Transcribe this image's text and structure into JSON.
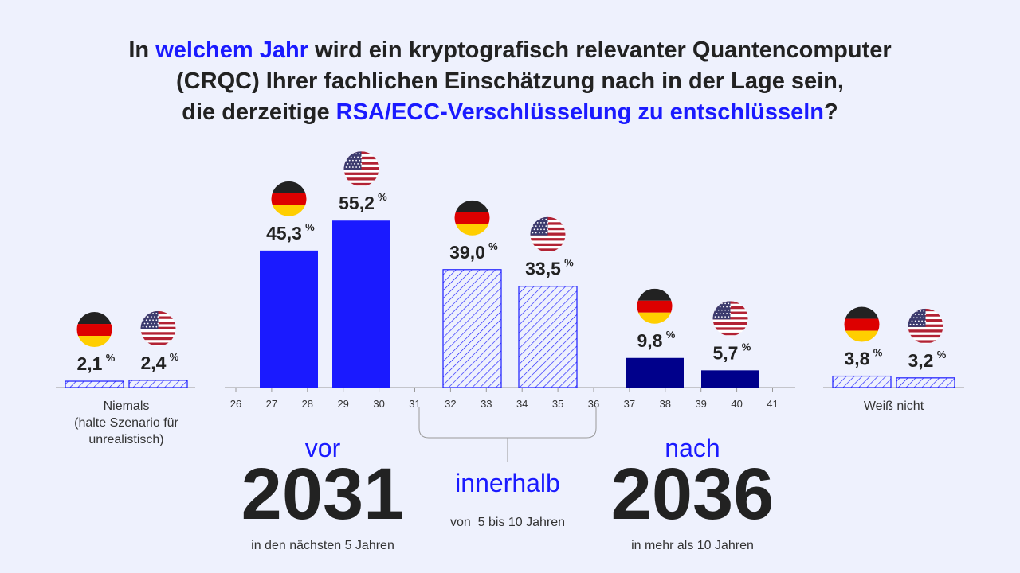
{
  "title": {
    "line1_a": "In ",
    "line1_hl": "welchem Jahr",
    "line1_b": " wird ein kryptografisch relevanter Quantencomputer",
    "line2": "(CRQC) Ihrer fachlichen Einschätzung nach in der Lage sein,",
    "line3_a": "die derzeitige ",
    "line3_hl": "RSA/ECC-Verschlüsselung zu entschlüsseln",
    "line3_b": "?"
  },
  "colors": {
    "background": "#eef1fd",
    "accent": "#1a1aff",
    "navy": "#00008b",
    "text": "#222222"
  },
  "chart_data": {
    "type": "bar",
    "unit": "%",
    "x_ticks": [
      "26",
      "27",
      "28",
      "29",
      "30",
      "31",
      "32",
      "33",
      "34",
      "35",
      "36",
      "37",
      "38",
      "39",
      "40",
      "41"
    ],
    "grid": false,
    "groups": [
      {
        "category": "Niemals (halte Szenario für unrealistisch)",
        "label_lines": [
          "Niemals",
          "(halte Szenario für",
          "unrealistisch)"
        ],
        "style": "hatched",
        "bars": [
          {
            "country": "DE",
            "flag": "germany-flag",
            "value": 2.1,
            "label": "2,1"
          },
          {
            "country": "US",
            "flag": "usa-flag",
            "value": 2.4,
            "label": "2,4"
          }
        ]
      },
      {
        "category": "vor 2031",
        "style": "solid-blue",
        "bars": [
          {
            "country": "DE",
            "flag": "germany-flag",
            "value": 45.3,
            "label": "45,3"
          },
          {
            "country": "US",
            "flag": "usa-flag",
            "value": 55.2,
            "label": "55,2"
          }
        ]
      },
      {
        "category": "innerhalb",
        "style": "hatched",
        "bars": [
          {
            "country": "DE",
            "flag": "germany-flag",
            "value": 39.0,
            "label": "39,0"
          },
          {
            "country": "US",
            "flag": "usa-flag",
            "value": 33.5,
            "label": "33,5"
          }
        ]
      },
      {
        "category": "nach 2036",
        "style": "solid-navy",
        "bars": [
          {
            "country": "DE",
            "flag": "germany-flag",
            "value": 9.8,
            "label": "9,8"
          },
          {
            "country": "US",
            "flag": "usa-flag",
            "value": 5.7,
            "label": "5,7"
          }
        ]
      },
      {
        "category": "Weiß nicht",
        "label_lines": [
          "Weiß nicht"
        ],
        "style": "hatched",
        "bars": [
          {
            "country": "DE",
            "flag": "germany-flag",
            "value": 3.8,
            "label": "3,8"
          },
          {
            "country": "US",
            "flag": "usa-flag",
            "value": 3.2,
            "label": "3,2"
          }
        ]
      }
    ]
  },
  "bottom": {
    "vor": {
      "word": "vor",
      "year": "2031",
      "sub": "in den nächsten 5 Jahren"
    },
    "innerhalb": {
      "word": "innerhalb",
      "sub": "von  5 bis 10 Jahren"
    },
    "nach": {
      "word": "nach",
      "year": "2036",
      "sub": "in mehr als 10 Jahren"
    }
  }
}
